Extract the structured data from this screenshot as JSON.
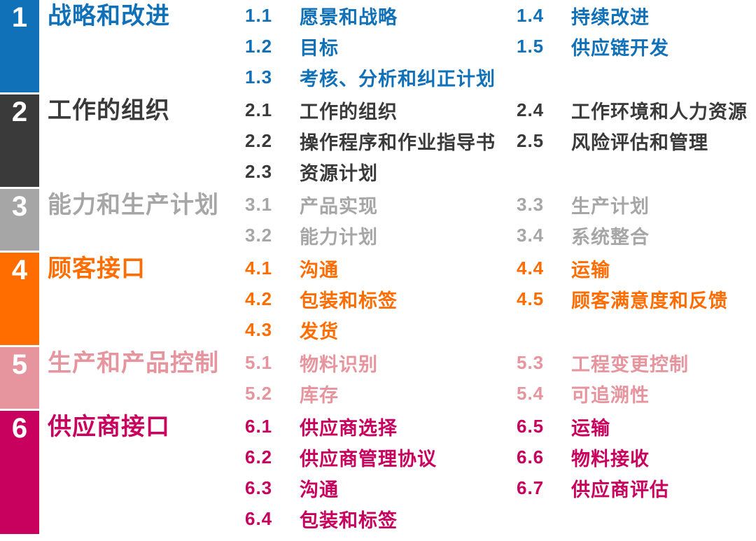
{
  "colors": {
    "background": "#FFFFFF",
    "bar_number_text": "#FFFFFF",
    "section1": "#1070B8",
    "section2": "#3A3A3A",
    "section3": "#A6A6A6",
    "section4": "#FF6C00",
    "section5": "#E6959E",
    "section6": "#C8005E"
  },
  "sections": [
    {
      "number": "1",
      "title": "战略和改进",
      "color": "#1070B8",
      "col_a": [
        {
          "num": "1.1",
          "label": "愿景和战略"
        },
        {
          "num": "1.2",
          "label": "目标"
        },
        {
          "num": "1.3",
          "label": "考核、分析和纠正计划"
        }
      ],
      "col_b": [
        {
          "num": "1.4",
          "label": "持续改进"
        },
        {
          "num": "1.5",
          "label": "供应链开发"
        }
      ]
    },
    {
      "number": "2",
      "title": "工作的组织",
      "color": "#3A3A3A",
      "col_a": [
        {
          "num": "2.1",
          "label": "工作的组织"
        },
        {
          "num": "2.2",
          "label": "操作程序和作业指导书"
        },
        {
          "num": "2.3",
          "label": "资源计划"
        }
      ],
      "col_b": [
        {
          "num": "2.4",
          "label": "工作环境和人力资源"
        },
        {
          "num": "2.5",
          "label": "风险评估和管理"
        }
      ]
    },
    {
      "number": "3",
      "title": "能力和生产计划",
      "color": "#A6A6A6",
      "col_a": [
        {
          "num": "3.1",
          "label": "产品实现"
        },
        {
          "num": "3.2",
          "label": "能力计划"
        }
      ],
      "col_b": [
        {
          "num": "3.3",
          "label": "生产计划"
        },
        {
          "num": "3.4",
          "label": "系统整合"
        }
      ]
    },
    {
      "number": "4",
      "title": "顾客接口",
      "color": "#FF6C00",
      "col_a": [
        {
          "num": "4.1",
          "label": "沟通"
        },
        {
          "num": "4.2",
          "label": "包装和标签"
        },
        {
          "num": "4.3",
          "label": "发货"
        }
      ],
      "col_b": [
        {
          "num": "4.4",
          "label": "运输"
        },
        {
          "num": "4.5",
          "label": "顾客满意度和反馈"
        }
      ]
    },
    {
      "number": "5",
      "title": "生产和产品控制",
      "color": "#E6959E",
      "col_a": [
        {
          "num": "5.1",
          "label": "物料识别"
        },
        {
          "num": "5.2",
          "label": "库存"
        }
      ],
      "col_b": [
        {
          "num": "5.3",
          "label": "工程变更控制"
        },
        {
          "num": "5.4",
          "label": "可追溯性"
        }
      ]
    },
    {
      "number": "6",
      "title": "供应商接口",
      "color": "#C8005E",
      "col_a": [
        {
          "num": "6.1",
          "label": "供应商选择"
        },
        {
          "num": "6.2",
          "label": "供应商管理协议"
        },
        {
          "num": "6.3",
          "label": "沟通"
        },
        {
          "num": "6.4",
          "label": "包装和标签"
        }
      ],
      "col_b": [
        {
          "num": "6.5",
          "label": "运输"
        },
        {
          "num": "6.6",
          "label": "物料接收"
        },
        {
          "num": "6.7",
          "label": "供应商评估"
        }
      ]
    }
  ]
}
